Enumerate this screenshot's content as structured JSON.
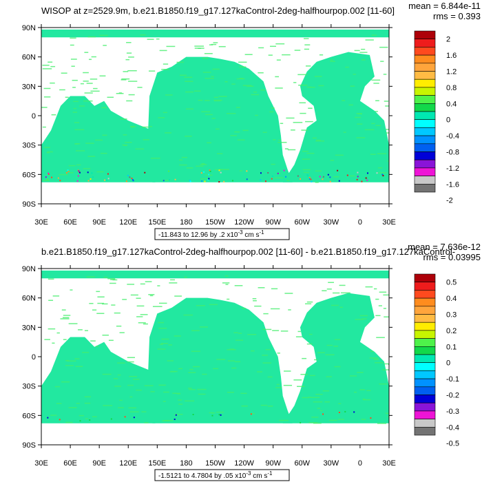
{
  "panels": [
    {
      "id": "top",
      "title": "WISOP at z=2529.9m, b.e21.B1850.f19_g17.127kaControl-2deg-halfhourpop.002 [11-60]",
      "mean": "mean = 6.844e-11",
      "rms": "rms = 0.393",
      "range_prefix": "-11.843 to 12.96 by .2 x10",
      "range_exp": "-3",
      "range_units": " cm s",
      "range_units_exp": "-1",
      "colorbar": [
        "2",
        "1.6",
        "1.2",
        "0.8",
        "0.4",
        "0",
        "-0.4",
        "-0.8",
        "-1.2",
        "-1.6",
        "-2"
      ]
    },
    {
      "id": "bottom",
      "title": "b.e21.B1850.f19_g17.127kaControl-2deg-halfhourpop.002 [11-60] - b.e21.B1850.f19_g17.127kaControl-",
      "mean": "mean = 7.636e-12",
      "rms": "rms = 0.03995",
      "range_prefix": "-1.5121 to 4.7804 by .05 x10",
      "range_exp": "-3",
      "range_units": " cm s",
      "range_units_exp": "-1",
      "colorbar": [
        "0.5",
        "0.4",
        "0.3",
        "0.2",
        "0.1",
        "0",
        "-0.1",
        "-0.2",
        "-0.3",
        "-0.4",
        "-0.5"
      ]
    }
  ],
  "lat_ticks": [
    "90N",
    "60N",
    "30N",
    "0",
    "30S",
    "60S",
    "90S"
  ],
  "lon_ticks": [
    "30E",
    "60E",
    "90E",
    "120E",
    "150E",
    "180",
    "150W",
    "120W",
    "90W",
    "60W",
    "30W",
    "0",
    "30E"
  ],
  "palette": [
    "#ad0009",
    "#ee1c1c",
    "#ff4a1e",
    "#ff8c1e",
    "#ffa53c",
    "#ffbb44",
    "#ffed00",
    "#c8f500",
    "#4ef24a",
    "#12d84a",
    "#00e8b2",
    "#00ffff",
    "#00c8ff",
    "#0092ff",
    "#0060f0",
    "#0000d8",
    "#8a14d8",
    "#ee14d6",
    "#c8c8c8",
    "#737373"
  ],
  "field_colors": {
    "ocean": "#22e8a0",
    "ocean_alt": "#45ee6c",
    "land": "#ffffff"
  }
}
